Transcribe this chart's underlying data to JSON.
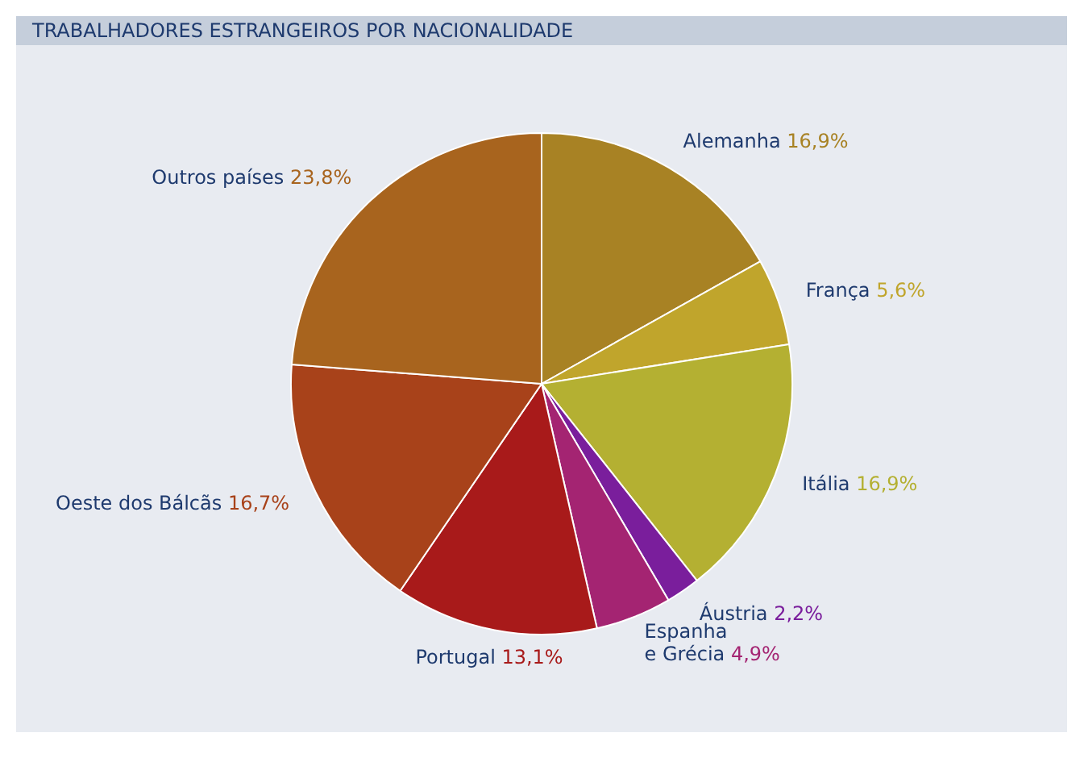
{
  "chart_data": {
    "type": "pie",
    "title": "TRABALHADORES ESTRANGEIROS POR NACIONALIDADE",
    "categories": [
      "Alemanha",
      "França",
      "Itália",
      "Áustria",
      "Espanha\ne Grécia",
      "Portugal",
      "Oeste dos Bálcãs",
      "Outros países"
    ],
    "values": [
      16.9,
      5.6,
      16.9,
      2.2,
      4.9,
      13.1,
      16.7,
      23.8
    ],
    "value_labels": [
      "16,9%",
      "5,6%",
      "16,9%",
      "2,2%",
      "4,9%",
      "13,1%",
      "16,7%",
      "23,8%"
    ],
    "colors": [
      "#a88224",
      "#c0a52c",
      "#b4b032",
      "#7a1e9c",
      "#a42472",
      "#a81a1a",
      "#a8421a",
      "#a8641e"
    ],
    "legend": false
  }
}
